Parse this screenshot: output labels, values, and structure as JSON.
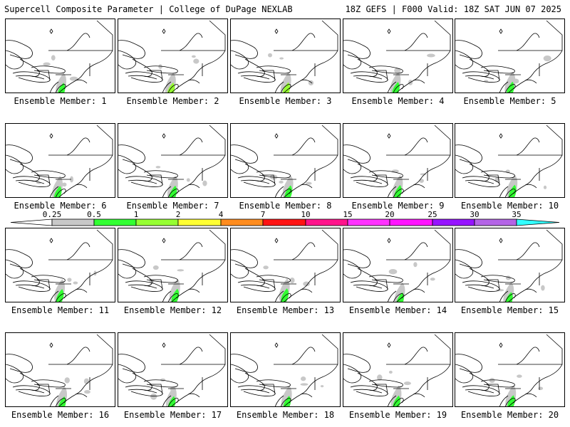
{
  "header": {
    "title": "Supercell Composite Parameter | College of DuPage NEXLAB",
    "run_info": "18Z GEFS | F000 Valid: 18Z SAT JUN 07 2025"
  },
  "colors": {
    "frame": "#000000",
    "map_lines": "#000000",
    "low_shade": "#c8c8c8"
  },
  "scale": {
    "ticks": [
      "0.25",
      "0.5",
      "1",
      "2",
      "4",
      "7",
      "10",
      "15",
      "20",
      "25",
      "30",
      "35"
    ],
    "bins": [
      {
        "from": "0.25",
        "to": "0.5",
        "color": "#c8c8c8"
      },
      {
        "from": "0.5",
        "to": "1",
        "color": "#32ff32"
      },
      {
        "from": "1",
        "to": "2",
        "color": "#96ff32"
      },
      {
        "from": "2",
        "to": "4",
        "color": "#ffff32"
      },
      {
        "from": "4",
        "to": "7",
        "color": "#ff8c1e"
      },
      {
        "from": "7",
        "to": "10",
        "color": "#ff1414"
      },
      {
        "from": "10",
        "to": "15",
        "color": "#ff148c"
      },
      {
        "from": "15",
        "to": "20",
        "color": "#ff32ff"
      },
      {
        "from": "20",
        "to": "25",
        "color": "#ff14ff"
      },
      {
        "from": "25",
        "to": "30",
        "color": "#9614ff"
      },
      {
        "from": "30",
        "to": "35",
        "color": "#b464e6"
      },
      {
        "from": "35",
        "to": "",
        "color": "#32ffff"
      }
    ]
  },
  "members": [
    {
      "label": "Ensemble Member: 1",
      "level": 1
    },
    {
      "label": "Ensemble Member: 2",
      "level": 2
    },
    {
      "label": "Ensemble Member: 3",
      "level": 2
    },
    {
      "label": "Ensemble Member: 4",
      "level": 1
    },
    {
      "label": "Ensemble Member: 5",
      "level": 1
    },
    {
      "label": "Ensemble Member: 6",
      "level": 1
    },
    {
      "label": "Ensemble Member: 7",
      "level": 1
    },
    {
      "label": "Ensemble Member: 8",
      "level": 1
    },
    {
      "label": "Ensemble Member: 9",
      "level": 1
    },
    {
      "label": "Ensemble Member: 10",
      "level": 1
    },
    {
      "label": "Ensemble Member: 11",
      "level": 1
    },
    {
      "label": "Ensemble Member: 12",
      "level": 1
    },
    {
      "label": "Ensemble Member: 13",
      "level": 1
    },
    {
      "label": "Ensemble Member: 14",
      "level": 1
    },
    {
      "label": "Ensemble Member: 15",
      "level": 1
    },
    {
      "label": "Ensemble Member: 16",
      "level": 1
    },
    {
      "label": "Ensemble Member: 17",
      "level": 1
    },
    {
      "label": "Ensemble Member: 18",
      "level": 1
    },
    {
      "label": "Ensemble Member: 19",
      "level": 1
    },
    {
      "label": "Ensemble Member: 20",
      "level": 1
    }
  ]
}
